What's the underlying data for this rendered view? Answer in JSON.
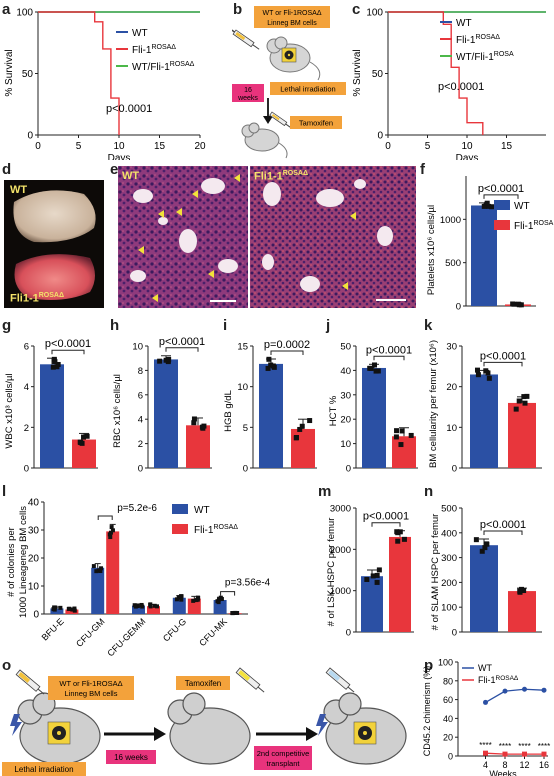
{
  "colors": {
    "wt": "#2b50a4",
    "mut": "#e8363c",
    "ctrl": "#4cb84a",
    "pink": "#e8337c",
    "orange": "#f3a23b"
  },
  "panel_letters": {
    "a": "a",
    "b": "b",
    "c": "c",
    "d": "d",
    "e": "e",
    "f": "f",
    "g": "g",
    "h": "h",
    "i": "i",
    "j": "j",
    "k": "k",
    "l": "l",
    "m": "m",
    "n": "n",
    "o": "o",
    "p": "p"
  },
  "legend": {
    "wt": "WT",
    "mut": "Fli-1ROSAΔ",
    "mut_base": "Fli-1",
    "mut_sup": "ROSAΔ",
    "ctrl": "WT/Fli-1ROSAΔ",
    "ctrl_base": "WT/Fli-1",
    "ctrl_sup_a": "ROSAΔ",
    "ctrl_sup_c": "ROSA",
    "mut_sup_f": "ROSA"
  },
  "b": {
    "donor_line1": "WT or Fli-1ROSAΔ",
    "donor_line2": "Linneg BM cells",
    "weeks_top": "16",
    "weeks_bottom": "weeks",
    "irradiation": "Lethal irradiation",
    "tamoxifen": "Tamoxifen"
  },
  "d": {
    "wt_label": "WT",
    "mut_base": "Fli1-1",
    "mut_sup": "ROSAΔ"
  },
  "e": {
    "wt_label": "WT",
    "mut_base": "Fli1-1",
    "mut_sup": "ROSAΔ"
  },
  "o": {
    "donor_line1": "WT or Fli-1ROSAΔ",
    "donor_line2": "Linneg BM cells",
    "tamoxifen": "Tamoxifen",
    "weeks": "16 weeks",
    "second_line1": "2nd competitive",
    "second_line2": "transplant",
    "irradiation": "Lethal irradiation"
  },
  "chart_data": [
    {
      "panel": "a",
      "type": "line",
      "ylabel": "% Survival",
      "xlabel": "Days",
      "xlim": [
        0,
        20
      ],
      "ylim": [
        0,
        100
      ],
      "xticks": [
        0,
        5,
        10,
        15,
        20
      ],
      "yticks": [
        0,
        50,
        100
      ],
      "annotation": "p<0.0001",
      "series": [
        {
          "name": "WT",
          "x": [
            0,
            20
          ],
          "y": [
            100,
            100
          ]
        },
        {
          "name": "WT/Fli-1ROSAΔ",
          "x": [
            0,
            20
          ],
          "y": [
            100,
            100
          ]
        },
        {
          "name": "Fli-1ROSAΔ",
          "x": [
            0,
            7,
            7,
            8,
            8,
            9,
            9,
            10,
            10
          ],
          "y": [
            100,
            100,
            92,
            92,
            70,
            70,
            30,
            30,
            0
          ]
        }
      ]
    },
    {
      "panel": "c",
      "type": "line",
      "ylabel": "% Survival",
      "xlabel": "Days",
      "xlim": [
        0,
        20
      ],
      "ylim": [
        0,
        100
      ],
      "xticks": [
        0,
        5,
        10,
        15
      ],
      "yticks": [
        0,
        50,
        100
      ],
      "annotation": "p<0.0001",
      "series": [
        {
          "name": "WT",
          "x": [
            0,
            20
          ],
          "y": [
            100,
            100
          ]
        },
        {
          "name": "WT/Fli-1ROSA",
          "x": [
            0,
            20
          ],
          "y": [
            100,
            100
          ]
        },
        {
          "name": "Fli-1ROSAΔ",
          "x": [
            0,
            7,
            7,
            8,
            8,
            9,
            9,
            10,
            10,
            12,
            12
          ],
          "y": [
            100,
            100,
            90,
            90,
            55,
            55,
            30,
            30,
            10,
            10,
            0
          ]
        }
      ]
    },
    {
      "panel": "f",
      "type": "bar",
      "ylabel": "Platelets x10⁶ cells/µl",
      "ylim": [
        0,
        1500
      ],
      "yticks": [
        0,
        500,
        1000
      ],
      "annotation": "p<0.0001",
      "categories": [
        "WT",
        "Fli-1ROSA"
      ],
      "values": [
        1160,
        18
      ],
      "errors": [
        30,
        5
      ]
    },
    {
      "panel": "g",
      "type": "bar",
      "ylabel": "WBC x10³ cells/µl",
      "ylim": [
        0,
        6
      ],
      "yticks": [
        0,
        2,
        4,
        6
      ],
      "annotation": "p<0.0001",
      "categories": [
        "WT",
        "Fli-1ROSAΔ"
      ],
      "values": [
        5.1,
        1.4
      ],
      "errors": [
        0.3,
        0.3
      ]
    },
    {
      "panel": "h",
      "type": "bar",
      "ylabel": "RBC x10⁶ cells/µl",
      "ylim": [
        0,
        10
      ],
      "yticks": [
        0,
        2,
        4,
        6,
        8,
        10
      ],
      "annotation": "p<0.0001",
      "categories": [
        "WT",
        "Fli-1ROSAΔ"
      ],
      "values": [
        8.9,
        3.5
      ],
      "errors": [
        0.3,
        0.6
      ]
    },
    {
      "panel": "i",
      "type": "bar",
      "ylabel": "HGB g/dL",
      "ylim": [
        0,
        15
      ],
      "yticks": [
        0,
        5,
        10,
        15
      ],
      "annotation": "p=0.0002",
      "categories": [
        "WT",
        "Fli-1ROSAΔ"
      ],
      "values": [
        12.8,
        4.8
      ],
      "errors": [
        0.6,
        1.2
      ]
    },
    {
      "panel": "j",
      "type": "bar",
      "ylabel": "HCT %",
      "ylim": [
        0,
        50
      ],
      "yticks": [
        0,
        10,
        20,
        30,
        40,
        50
      ],
      "annotation": "p<0.0001",
      "categories": [
        "WT",
        "Fli-1ROSAΔ"
      ],
      "values": [
        41,
        13
      ],
      "errors": [
        1.5,
        3.5
      ]
    },
    {
      "panel": "k",
      "type": "bar",
      "ylabel": "BM cellularity per femur (x10⁶)",
      "ylim": [
        0,
        30
      ],
      "yticks": [
        0,
        10,
        20,
        30
      ],
      "annotation": "p<0.0001",
      "categories": [
        "WT",
        "Fli-1ROSAΔ"
      ],
      "values": [
        23,
        16
      ],
      "errors": [
        1.0,
        1.5
      ]
    },
    {
      "panel": "l",
      "type": "bar",
      "ylabel": "# of colonies per 1000 Lineageneg BM cells",
      "ylim": [
        0,
        40
      ],
      "yticks": [
        0,
        10,
        20,
        30,
        40
      ],
      "categories": [
        "BFU-E",
        "CFU-GM",
        "CFU-GEMM",
        "CFU-G",
        "CFU-MK"
      ],
      "series": [
        {
          "name": "WT",
          "values": [
            2,
            16.5,
            3,
            5.8,
            5
          ],
          "errors": [
            0.5,
            1.5,
            0.6,
            0.8,
            1.0
          ]
        },
        {
          "name": "Fli-1ROSAΔ",
          "values": [
            1.6,
            29.5,
            2.8,
            5.5,
            0.3
          ],
          "errors": [
            0.5,
            2.5,
            0.6,
            0.8,
            0.1
          ]
        }
      ],
      "annotations": [
        "p=5.2e-6",
        "p=3.56e-4"
      ]
    },
    {
      "panel": "m",
      "type": "bar",
      "ylabel": "# of LSK HSPC per femur",
      "ylim": [
        0,
        3000
      ],
      "yticks": [
        0,
        1000,
        2000,
        3000
      ],
      "annotation": "p<0.0001",
      "categories": [
        "WT",
        "Fli-1ROSAΔ"
      ],
      "values": [
        1350,
        2300
      ],
      "errors": [
        150,
        150
      ]
    },
    {
      "panel": "n",
      "type": "bar",
      "ylabel": "# of SLAM HSPC per femur",
      "ylim": [
        0,
        500
      ],
      "yticks": [
        0,
        100,
        200,
        300,
        400,
        500
      ],
      "annotation": "p<0.0001",
      "categories": [
        "WT",
        "Fli-1ROSAΔ"
      ],
      "values": [
        350,
        165
      ],
      "errors": [
        25,
        12
      ]
    },
    {
      "panel": "p",
      "type": "line",
      "ylabel": "CD45.2 chimerism (%)",
      "xlabel": "Weeks",
      "xlim": [
        0,
        16
      ],
      "ylim": [
        0,
        100
      ],
      "xticks": [
        0,
        4,
        8,
        12,
        16
      ],
      "yticks": [
        0,
        20,
        40,
        60,
        80,
        100
      ],
      "annotation": "****",
      "series": [
        {
          "name": "WT",
          "x": [
            4,
            8,
            12,
            16
          ],
          "y": [
            57,
            69,
            71,
            70
          ]
        },
        {
          "name": "Fli-1ROSAΔ",
          "x": [
            4,
            8,
            12,
            16
          ],
          "y": [
            3,
            2,
            2,
            2
          ]
        }
      ]
    }
  ]
}
